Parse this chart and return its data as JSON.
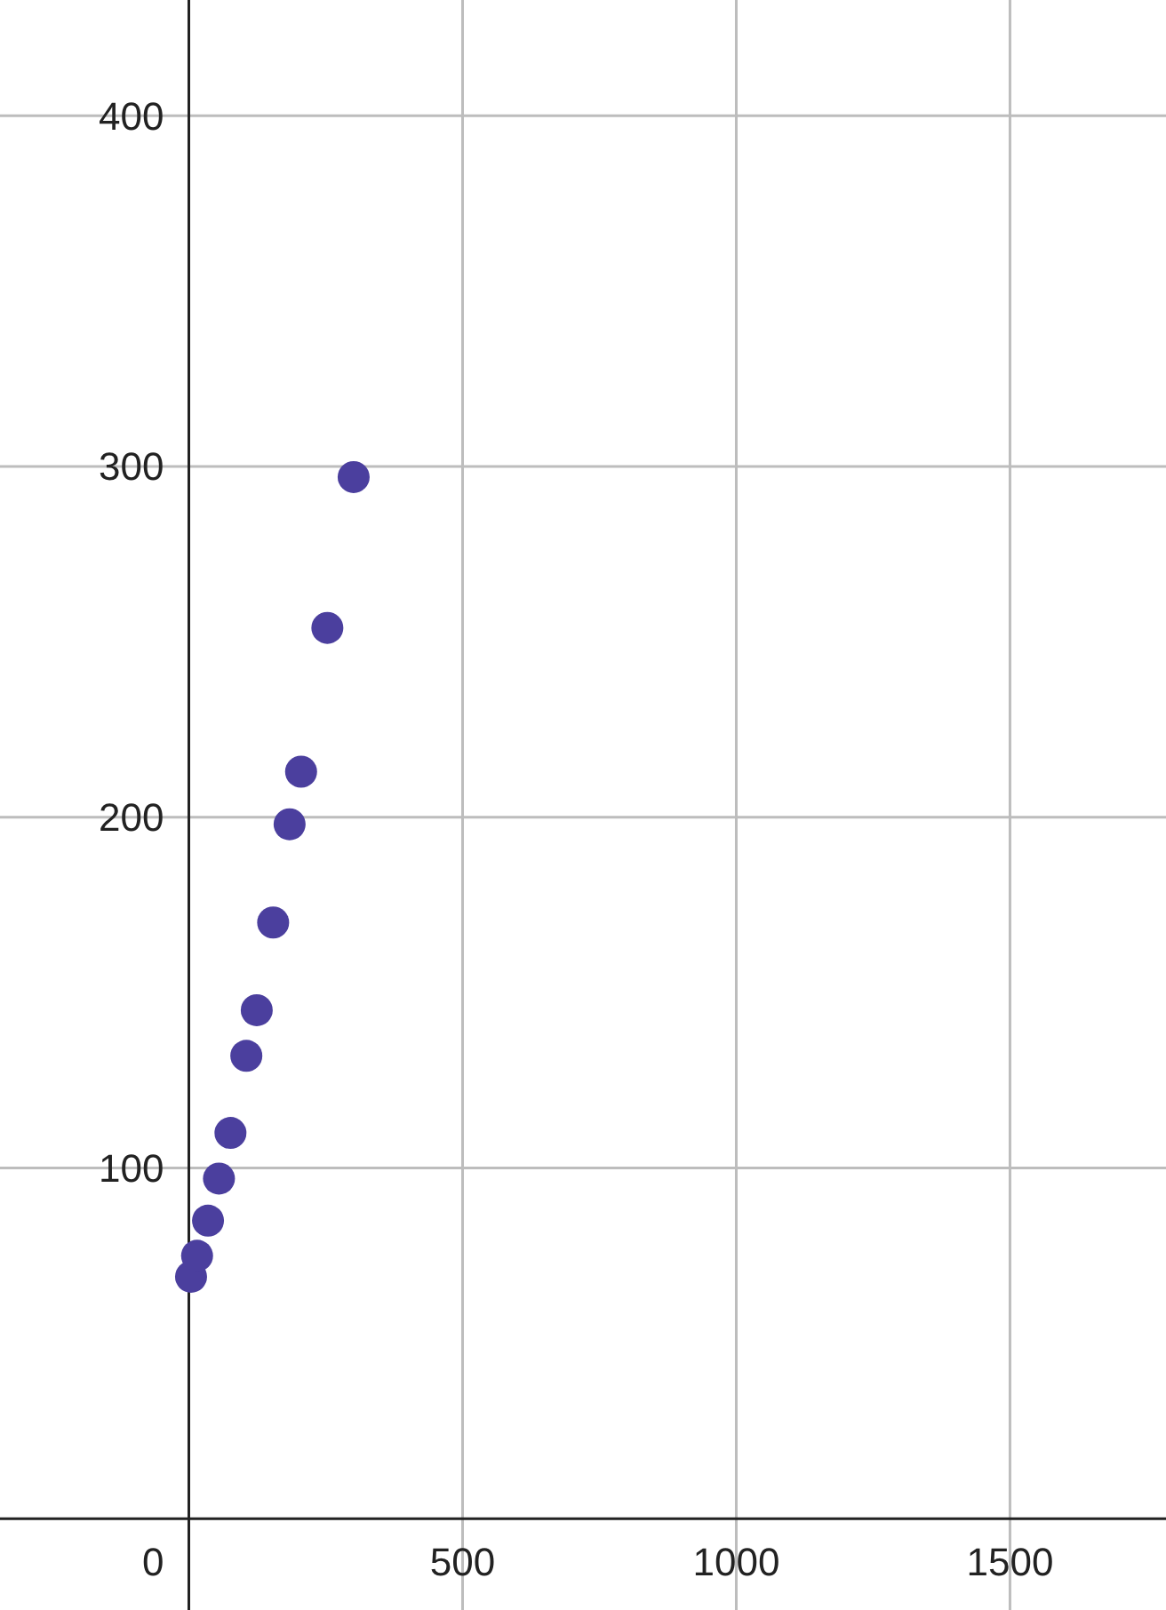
{
  "chart_data": {
    "type": "scatter",
    "marker": "circle",
    "grid": true,
    "x": [
      4,
      15,
      35,
      55,
      76,
      105,
      124,
      154,
      184,
      205,
      253,
      301
    ],
    "series": [
      {
        "color": "#4b3f9e",
        "values": [
          69,
          75,
          85,
          97,
          110,
          132,
          145,
          170,
          198,
          213,
          254,
          297
        ]
      }
    ],
    "xlim": [
      -345,
      1785
    ],
    "ylim": [
      -26,
      433
    ],
    "xticks": [
      0,
      500,
      1000,
      1500
    ],
    "yticks": [
      100,
      200,
      300,
      400
    ]
  }
}
